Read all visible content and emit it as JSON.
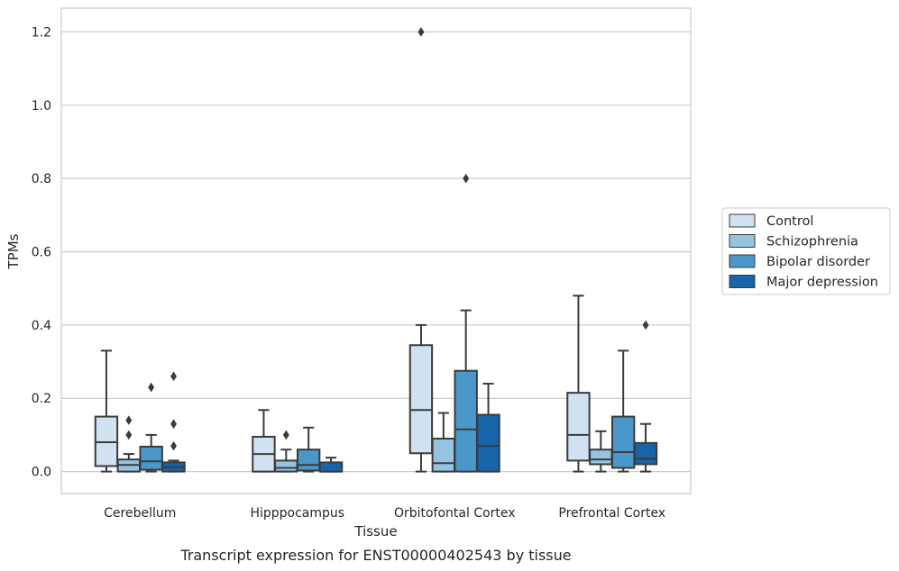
{
  "caption": "Transcript expression for ENST00000402543 by tissue",
  "chart_data": {
    "type": "box",
    "xlabel": "Tissue",
    "ylabel": "TPMs",
    "ylim": [
      -0.06,
      1.265
    ],
    "yticks": [
      "0.0",
      "0.2",
      "0.4",
      "0.6",
      "0.8",
      "1.0",
      "1.2"
    ],
    "grid": "horizontal",
    "legend_position": "right",
    "categories": [
      "Cerebellum",
      "Hipppocampus",
      "Orbitofontal Cortex",
      "Prefrontal Cortex"
    ],
    "series": [
      {
        "name": "Control",
        "color": "#d0e1f2",
        "boxes": [
          {
            "whislo": 0,
            "q1": 0.015,
            "med": 0.08,
            "q3": 0.15,
            "whishi": 0.33,
            "fliers": []
          },
          {
            "whislo": 0,
            "q1": 0.0,
            "med": 0.048,
            "q3": 0.095,
            "whishi": 0.168,
            "fliers": []
          },
          {
            "whislo": 0,
            "q1": 0.05,
            "med": 0.168,
            "q3": 0.345,
            "whishi": 0.4,
            "fliers": [
              1.2
            ]
          },
          {
            "whislo": 0,
            "q1": 0.03,
            "med": 0.1,
            "q3": 0.215,
            "whishi": 0.48,
            "fliers": []
          }
        ]
      },
      {
        "name": "Schizophrenia",
        "color": "#94c4df",
        "boxes": [
          {
            "whislo": 0,
            "q1": 0.0,
            "med": 0.018,
            "q3": 0.033,
            "whishi": 0.048,
            "fliers": [
              0.1,
              0.14
            ]
          },
          {
            "whislo": 0,
            "q1": 0.0,
            "med": 0.01,
            "q3": 0.03,
            "whishi": 0.06,
            "fliers": [
              0.1
            ]
          },
          {
            "whislo": 0,
            "q1": 0.0,
            "med": 0.023,
            "q3": 0.09,
            "whishi": 0.16,
            "fliers": []
          },
          {
            "whislo": 0,
            "q1": 0.02,
            "med": 0.033,
            "q3": 0.06,
            "whishi": 0.11,
            "fliers": []
          }
        ]
      },
      {
        "name": "Bipolar disorder",
        "color": "#4a98c9",
        "boxes": [
          {
            "whislo": 0,
            "q1": 0.005,
            "med": 0.028,
            "q3": 0.068,
            "whishi": 0.1,
            "fliers": [
              0.23
            ]
          },
          {
            "whislo": 0,
            "q1": 0.003,
            "med": 0.018,
            "q3": 0.06,
            "whishi": 0.12,
            "fliers": []
          },
          {
            "whislo": 0,
            "q1": 0.0,
            "med": 0.115,
            "q3": 0.275,
            "whishi": 0.44,
            "fliers": [
              0.8
            ]
          },
          {
            "whislo": 0,
            "q1": 0.01,
            "med": 0.053,
            "q3": 0.15,
            "whishi": 0.33,
            "fliers": []
          }
        ]
      },
      {
        "name": "Major depression",
        "color": "#1764ab",
        "boxes": [
          {
            "whislo": 0,
            "q1": 0.0,
            "med": 0.012,
            "q3": 0.025,
            "whishi": 0.03,
            "fliers": [
              0.07,
              0.13,
              0.26
            ]
          },
          {
            "whislo": 0,
            "q1": 0.0,
            "med": 0.0,
            "q3": 0.025,
            "whishi": 0.038,
            "fliers": []
          },
          {
            "whislo": 0,
            "q1": 0.0,
            "med": 0.07,
            "q3": 0.155,
            "whishi": 0.24,
            "fliers": []
          },
          {
            "whislo": 0,
            "q1": 0.02,
            "med": 0.035,
            "q3": 0.078,
            "whishi": 0.13,
            "fliers": [
              0.4
            ]
          }
        ]
      }
    ]
  }
}
